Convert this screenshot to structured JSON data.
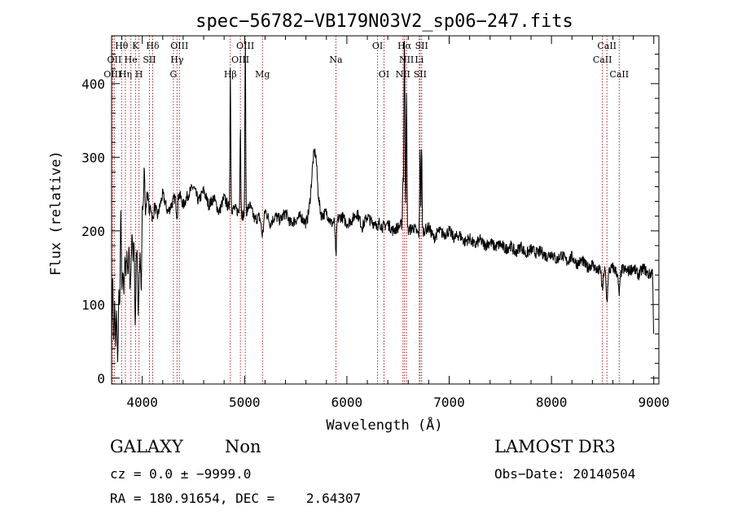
{
  "chart_data": {
    "type": "line",
    "title": "spec−56782−VB179N03V2_sp06−247.fits",
    "xlabel": "Wavelength (Å)",
    "ylabel": "Flux (relative)",
    "xlim": [
      3700,
      9050
    ],
    "ylim": [
      -8,
      465
    ],
    "xticks": [
      4000,
      5000,
      6000,
      7000,
      8000,
      9000
    ],
    "yticks": [
      0,
      100,
      200,
      300,
      400
    ],
    "grid": false,
    "line_color": "#000000",
    "marker_color": "#b22222",
    "anchors": [
      [
        3700,
        40
      ],
      [
        3710,
        150
      ],
      [
        3720,
        60
      ],
      [
        3730,
        140
      ],
      [
        3740,
        45
      ],
      [
        3750,
        110
      ],
      [
        3760,
        75
      ],
      [
        3770,
        130
      ],
      [
        3780,
        90
      ],
      [
        3790,
        230
      ],
      [
        3800,
        120
      ],
      [
        3810,
        150
      ],
      [
        3820,
        110
      ],
      [
        3830,
        170
      ],
      [
        3840,
        140
      ],
      [
        3850,
        175
      ],
      [
        3860,
        130
      ],
      [
        3870,
        190
      ],
      [
        3880,
        150
      ],
      [
        3890,
        200
      ],
      [
        3900,
        215
      ],
      [
        3910,
        160
      ],
      [
        3920,
        195
      ],
      [
        3930,
        140
      ],
      [
        3940,
        210
      ],
      [
        3950,
        175
      ],
      [
        3960,
        120
      ],
      [
        3970,
        200
      ],
      [
        3980,
        185
      ],
      [
        3990,
        100
      ],
      [
        4000,
        230
      ],
      [
        4010,
        240
      ],
      [
        4020,
        295
      ],
      [
        4030,
        220
      ],
      [
        4050,
        255
      ],
      [
        4070,
        225
      ],
      [
        4100,
        245
      ],
      [
        4150,
        220
      ],
      [
        4200,
        250
      ],
      [
        4250,
        225
      ],
      [
        4300,
        240
      ],
      [
        4350,
        255
      ],
      [
        4400,
        235
      ],
      [
        4450,
        250
      ],
      [
        4500,
        260
      ],
      [
        4550,
        240
      ],
      [
        4600,
        255
      ],
      [
        4650,
        235
      ],
      [
        4700,
        245
      ],
      [
        4750,
        225
      ],
      [
        4800,
        245
      ],
      [
        4850,
        230
      ],
      [
        4900,
        230
      ],
      [
        4950,
        225
      ],
      [
        5000,
        220
      ],
      [
        5050,
        235
      ],
      [
        5100,
        215
      ],
      [
        5150,
        220
      ],
      [
        5200,
        230
      ],
      [
        5250,
        210
      ],
      [
        5300,
        220
      ],
      [
        5350,
        215
      ],
      [
        5400,
        225
      ],
      [
        5450,
        210
      ],
      [
        5500,
        215
      ],
      [
        5550,
        220
      ],
      [
        5600,
        210
      ],
      [
        5650,
        230
      ],
      [
        5680,
        245
      ],
      [
        5700,
        255
      ],
      [
        5720,
        235
      ],
      [
        5750,
        220
      ],
      [
        5800,
        225
      ],
      [
        5850,
        210
      ],
      [
        5900,
        215
      ],
      [
        5950,
        220
      ],
      [
        6000,
        210
      ],
      [
        6050,
        215
      ],
      [
        6100,
        225
      ],
      [
        6150,
        205
      ],
      [
        6200,
        220
      ],
      [
        6250,
        210
      ],
      [
        6300,
        215
      ],
      [
        6350,
        205
      ],
      [
        6400,
        210
      ],
      [
        6450,
        200
      ],
      [
        6500,
        205
      ],
      [
        6550,
        210
      ],
      [
        6600,
        200
      ],
      [
        6650,
        205
      ],
      [
        6700,
        195
      ],
      [
        6750,
        200
      ],
      [
        6800,
        205
      ],
      [
        6850,
        190
      ],
      [
        6900,
        200
      ],
      [
        6950,
        195
      ],
      [
        7000,
        200
      ],
      [
        7050,
        190
      ],
      [
        7100,
        195
      ],
      [
        7150,
        185
      ],
      [
        7200,
        190
      ],
      [
        7250,
        180
      ],
      [
        7300,
        188
      ],
      [
        7350,
        180
      ],
      [
        7400,
        185
      ],
      [
        7450,
        178
      ],
      [
        7500,
        182
      ],
      [
        7550,
        175
      ],
      [
        7600,
        180
      ],
      [
        7650,
        170
      ],
      [
        7700,
        180
      ],
      [
        7750,
        168
      ],
      [
        7800,
        175
      ],
      [
        7850,
        170
      ],
      [
        7900,
        172
      ],
      [
        7950,
        165
      ],
      [
        8000,
        170
      ],
      [
        8050,
        160
      ],
      [
        8100,
        168
      ],
      [
        8150,
        158
      ],
      [
        8200,
        165
      ],
      [
        8250,
        155
      ],
      [
        8300,
        160
      ],
      [
        8350,
        150
      ],
      [
        8400,
        155
      ],
      [
        8450,
        145
      ],
      [
        8500,
        150
      ],
      [
        8550,
        145
      ],
      [
        8600,
        150
      ],
      [
        8650,
        142
      ],
      [
        8700,
        148
      ],
      [
        8750,
        145
      ],
      [
        8800,
        150
      ],
      [
        8850,
        140
      ],
      [
        8900,
        150
      ],
      [
        8950,
        140
      ],
      [
        8990,
        145
      ],
      [
        9000,
        40
      ]
    ],
    "features": [
      [
        3728,
        -40,
        6
      ],
      [
        3760,
        -60,
        6
      ],
      [
        3889,
        -50,
        8
      ],
      [
        3934,
        -80,
        7
      ],
      [
        3968,
        -60,
        7
      ],
      [
        4102,
        -30,
        8
      ],
      [
        4340,
        -30,
        8
      ],
      [
        4861,
        190,
        4
      ],
      [
        4959,
        120,
        4
      ],
      [
        5007,
        235,
        4
      ],
      [
        5175,
        -30,
        12
      ],
      [
        5680,
        60,
        25
      ],
      [
        5893,
        -50,
        6
      ],
      [
        6300,
        -20,
        6
      ],
      [
        6548,
        60,
        4
      ],
      [
        6563,
        250,
        5
      ],
      [
        6583,
        180,
        4
      ],
      [
        6716,
        120,
        4
      ],
      [
        6731,
        110,
        4
      ],
      [
        8498,
        -30,
        8
      ],
      [
        8542,
        -40,
        8
      ],
      [
        8662,
        -30,
        8
      ]
    ],
    "lines": [
      {
        "name": "Hθ",
        "x": 3798,
        "row": 0
      },
      {
        "name": "K",
        "x": 3934,
        "row": 0
      },
      {
        "name": "Hδ",
        "x": 4102,
        "row": 0
      },
      {
        "name": "OIII",
        "x": 4363,
        "row": 0
      },
      {
        "name": "OIII",
        "x": 5007,
        "row": 0
      },
      {
        "name": "OI",
        "x": 6300,
        "row": 0
      },
      {
        "name": "Hα",
        "x": 6563,
        "row": 0
      },
      {
        "name": "SII",
        "x": 6731,
        "row": 0
      },
      {
        "name": "CaII",
        "x": 8542,
        "row": 0
      },
      {
        "name": "OII",
        "x": 3727,
        "row": 1
      },
      {
        "name": "He",
        "x": 3889,
        "row": 1
      },
      {
        "name": "SII",
        "x": 4070,
        "row": 1
      },
      {
        "name": "Hγ",
        "x": 4340,
        "row": 1
      },
      {
        "name": "OIII",
        "x": 4959,
        "row": 1
      },
      {
        "name": "Na",
        "x": 5893,
        "row": 1
      },
      {
        "name": "NII",
        "x": 6583,
        "row": 1
      },
      {
        "name": "Li",
        "x": 6708,
        "row": 1
      },
      {
        "name": "CaII",
        "x": 8498,
        "row": 1
      },
      {
        "name": "OIII",
        "x": 3710,
        "row": 2
      },
      {
        "name": "Hη",
        "x": 3835,
        "row": 2
      },
      {
        "name": "H",
        "x": 3968,
        "row": 2
      },
      {
        "name": "G",
        "x": 4304,
        "row": 2
      },
      {
        "name": "Hβ",
        "x": 4861,
        "row": 2
      },
      {
        "name": "Mg",
        "x": 5175,
        "row": 2
      },
      {
        "name": "OI",
        "x": 6363,
        "row": 2
      },
      {
        "name": "NII",
        "x": 6548,
        "row": 2
      },
      {
        "name": "SII",
        "x": 6716,
        "row": 2
      },
      {
        "name": "CaII",
        "x": 8662,
        "row": 2
      }
    ]
  },
  "info": {
    "class": "GALAXY",
    "subclass": "Non",
    "survey": "LAMOST DR3",
    "cz": "cz = 0.0 ± −9999.0",
    "obs_date": "Obs−Date: 20140504",
    "coords": "RA = 180.91654, DEC =    2.64307"
  }
}
